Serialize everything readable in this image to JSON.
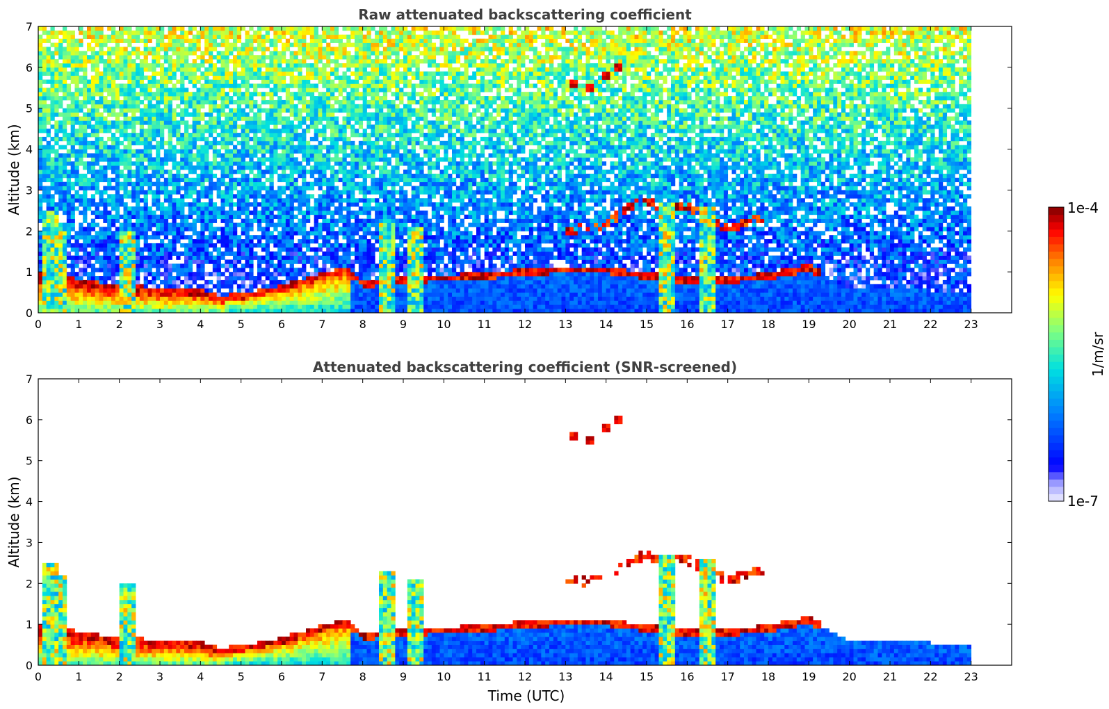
{
  "chart_data": [
    {
      "type": "heatmap",
      "title": "Raw attenuated backscattering coefficient",
      "xlabel": "",
      "ylabel": "Altitude (km)",
      "xlim": [
        0,
        24
      ],
      "ylim": [
        0,
        7
      ],
      "xticks": [
        "0",
        "1",
        "2",
        "3",
        "4",
        "5",
        "6",
        "7",
        "8",
        "9",
        "10",
        "11",
        "12",
        "13",
        "14",
        "15",
        "16",
        "17",
        "18",
        "19",
        "20",
        "21",
        "22",
        "23"
      ],
      "yticks": [
        "0",
        "1",
        "2",
        "3",
        "4",
        "5",
        "6",
        "7"
      ],
      "data_extent_hours": [
        0,
        23
      ],
      "features": [
        {
          "kind": "noise_background",
          "description_level": "log-scaled noise increasing with altitude"
        },
        {
          "kind": "boundary_layer",
          "x": [
            0,
            2,
            4,
            4.5,
            5,
            6,
            7,
            7.6,
            8,
            9,
            10,
            11,
            12,
            13,
            14,
            15,
            16,
            17,
            18,
            19,
            20,
            21,
            22,
            23
          ],
          "y": [
            0.9,
            0.6,
            0.5,
            0.35,
            0.4,
            0.6,
            0.9,
            1.05,
            0.7,
            0.8,
            0.85,
            0.9,
            1.0,
            1.05,
            1.05,
            0.9,
            0.8,
            0.8,
            0.9,
            1.1,
            0.6,
            0.6,
            0.55,
            0.5
          ]
        },
        {
          "kind": "cloud_layer",
          "x": [
            12.9,
            13.4,
            13.8,
            14.2,
            14.6,
            15.0,
            15.5,
            16.0,
            16.5,
            17.0,
            17.5,
            17.9
          ],
          "y": [
            2.0,
            2.05,
            2.1,
            2.3,
            2.6,
            2.7,
            2.55,
            2.6,
            2.3,
            2.1,
            2.2,
            2.3
          ]
        },
        {
          "kind": "high_cloud",
          "x": [
            13.2,
            13.6,
            14.0,
            14.3
          ],
          "y": [
            5.6,
            5.5,
            5.8,
            6.0
          ]
        },
        {
          "kind": "precipitation",
          "x": [
            0.3,
            0.5,
            2.2,
            8.6,
            9.3,
            15.5,
            16.5
          ],
          "y": [
            2.5,
            2.2,
            2.0,
            2.3,
            2.1,
            2.7,
            2.6
          ]
        }
      ]
    },
    {
      "type": "heatmap",
      "title": "Attenuated backscattering coefficient (SNR-screened)",
      "xlabel": "Time (UTC)",
      "ylabel": "Altitude (km)",
      "xlim": [
        0,
        24
      ],
      "ylim": [
        0,
        7
      ],
      "xticks": [
        "0",
        "1",
        "2",
        "3",
        "4",
        "5",
        "6",
        "7",
        "8",
        "9",
        "10",
        "11",
        "12",
        "13",
        "14",
        "15",
        "16",
        "17",
        "18",
        "19",
        "20",
        "21",
        "22",
        "23"
      ],
      "yticks": [
        "0",
        "1",
        "2",
        "3",
        "4",
        "5",
        "6",
        "7"
      ],
      "data_extent_hours": [
        0,
        23
      ]
    }
  ],
  "colorbar": {
    "min_label": "1e-7",
    "max_label": "1e-4",
    "unit": "1/m/sr",
    "scale": "log",
    "colormap": "jet"
  }
}
